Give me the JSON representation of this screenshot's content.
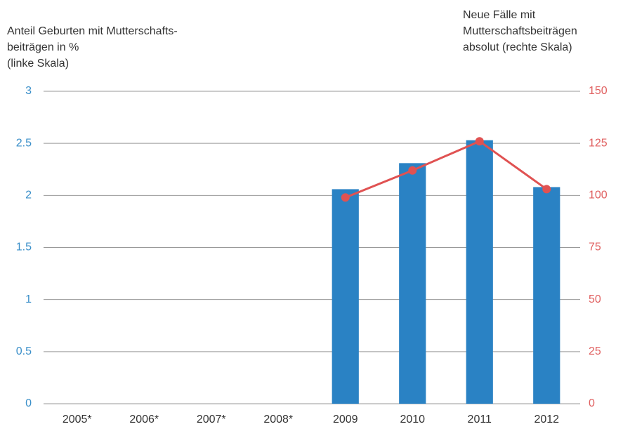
{
  "chart_data": {
    "type": "bar-line",
    "ylabel_lines": [
      "Anteil Geburten mit Mutterschafts-",
      "beiträgen in %",
      "(linke Skala)"
    ],
    "y2label_lines": [
      "Neue Fälle mit",
      "Mutterschaftsbeiträgen",
      "absolut (rechte Skala)"
    ],
    "categories": [
      "2005*",
      "2006*",
      "2007*",
      "2008*",
      "2009",
      "2010",
      "2011",
      "2012"
    ],
    "series": [
      {
        "type": "bar",
        "color": "#2a82c4",
        "values": [
          null,
          null,
          null,
          null,
          2.06,
          2.31,
          2.53,
          2.08
        ]
      },
      {
        "type": "line",
        "axis": "y2",
        "color": "#e05252",
        "values": [
          null,
          null,
          null,
          null,
          99,
          112,
          126,
          103
        ]
      }
    ],
    "ylim": [
      0,
      3
    ],
    "yticks": [
      0,
      0.5,
      1,
      1.5,
      2,
      2.5,
      3
    ],
    "y2lim": [
      0,
      150
    ],
    "y2ticks": [
      0,
      25,
      50,
      75,
      100,
      125,
      150
    ],
    "grid": true
  }
}
